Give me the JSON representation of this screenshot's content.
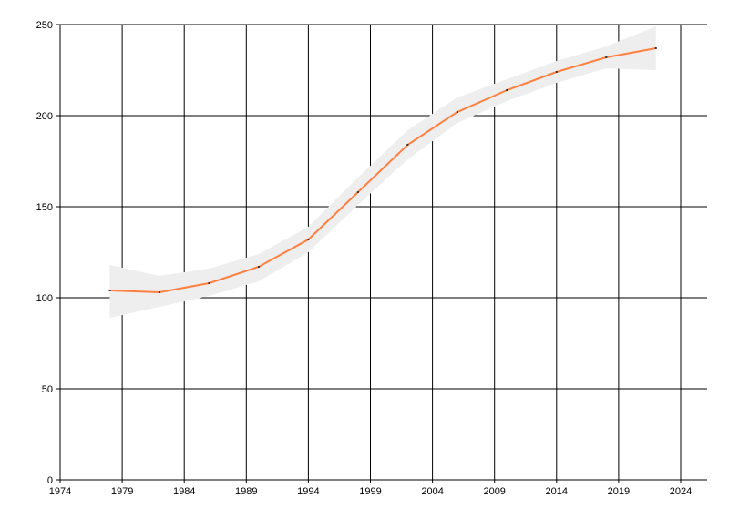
{
  "chart_data": {
    "type": "line",
    "title": "",
    "xlabel": "",
    "ylabel": "",
    "xlim": [
      1974,
      2026
    ],
    "ylim": [
      0,
      250
    ],
    "grid": true,
    "x_ticks": [
      1974,
      1979,
      1984,
      1989,
      1994,
      1999,
      2004,
      2009,
      2014,
      2019,
      2024
    ],
    "y_ticks": [
      0,
      50,
      100,
      150,
      200,
      250
    ],
    "x": [
      1978,
      1982,
      1986,
      1990,
      1994,
      1998,
      2002,
      2006,
      2010,
      2014,
      2018,
      2022
    ],
    "series": [
      {
        "values": [
          104,
          103,
          108,
          117,
          132,
          158,
          184,
          202,
          214,
          224,
          232,
          237
        ],
        "color": "#ff7f3f",
        "band_lower": [
          89,
          95,
          101,
          109,
          125,
          151,
          176,
          196,
          208,
          218,
          226,
          225
        ],
        "band_upper": [
          118,
          112,
          116,
          124,
          139,
          166,
          192,
          210,
          220,
          230,
          238,
          249
        ],
        "band_color": "#eeeeee"
      }
    ]
  }
}
